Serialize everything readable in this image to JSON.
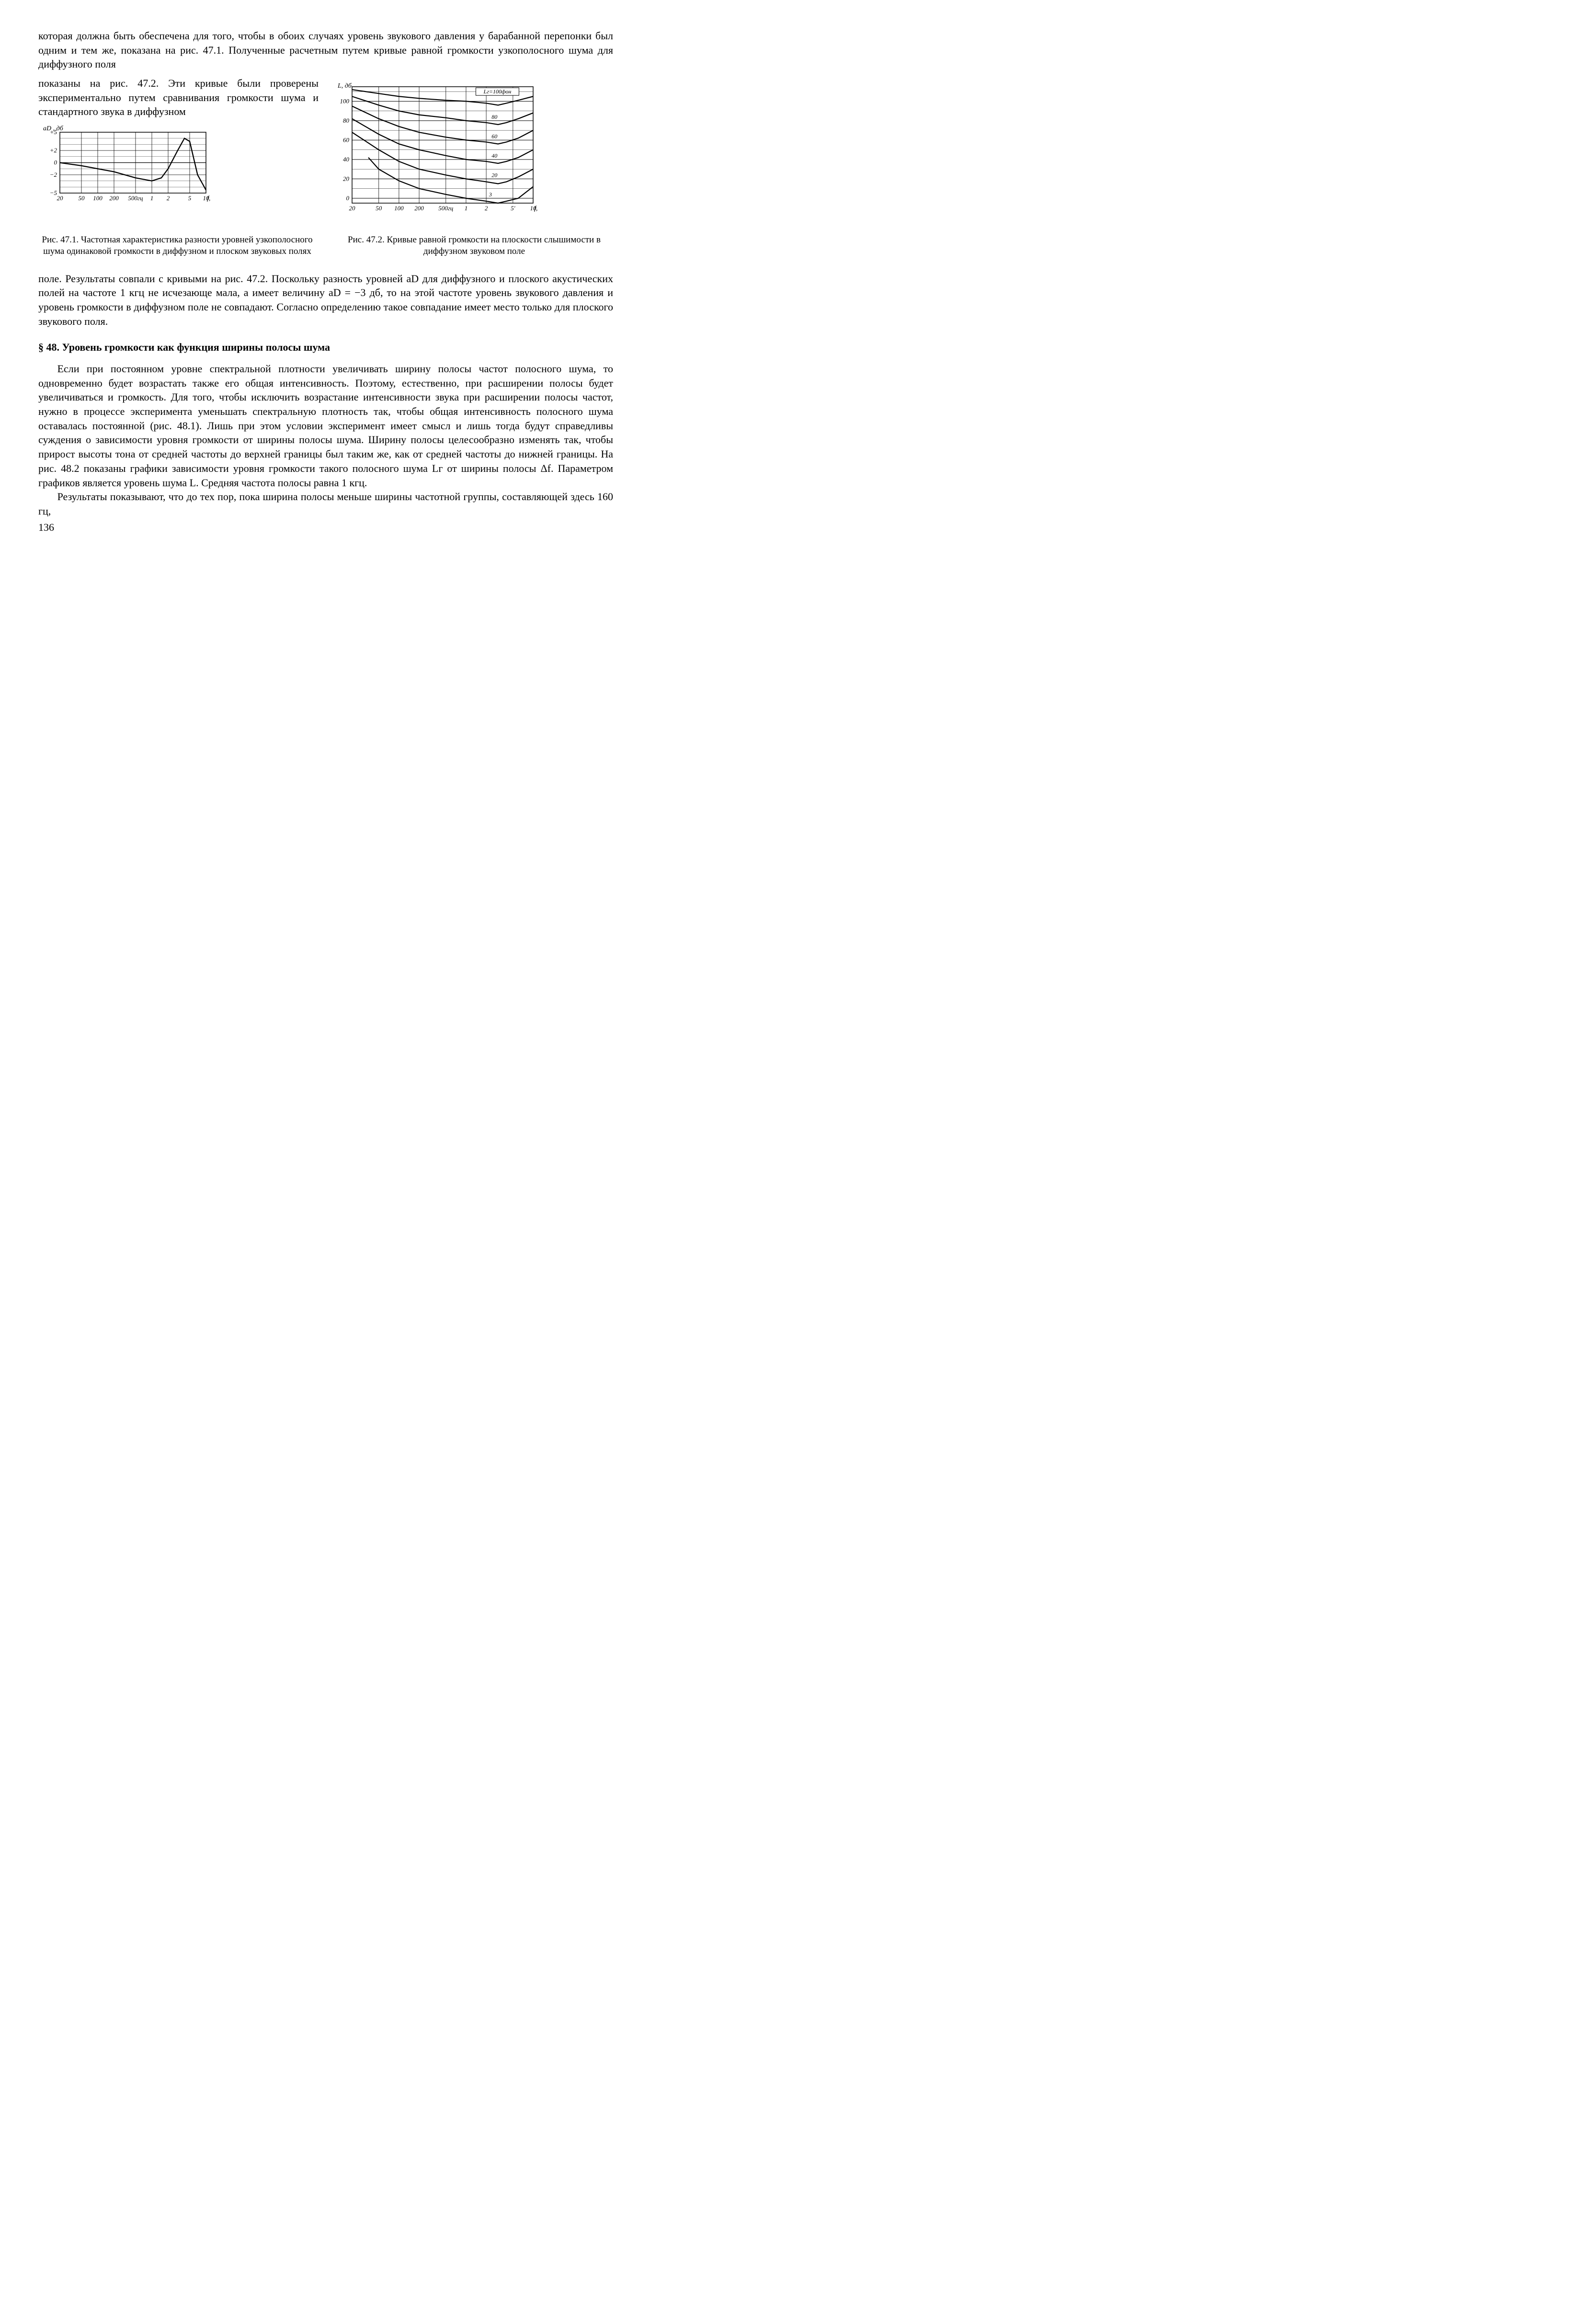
{
  "paragraphs": {
    "p1": "которая должна быть обеспечена для того, чтобы в обоих случаях уровень звукового давления у барабанной перепонки был одним и тем же, показана на рис. 47.1. Полученные расчетным путем кривые равной громкости узкополосного шума для диффузного поля",
    "p2_side": "показаны на рис. 47.2. Эти кривые были проверены экспериментально путем сравнивания громкости шума и стандартного звука в диффузном",
    "p3": "поле. Результаты совпали с кривыми на рис. 47.2. Поскольку разность уровней aD для диффузного и плоского акустических полей на частоте 1 кгц не исчезающе мала, а имеет величину aD = −3 дб, то на этой частоте уровень звукового давления и уровень громкости в диффузном поле не совпадают. Согласно определению такое совпадание имеет место только для плоского звукового поля.",
    "section_heading": "§ 48. Уровень громкости как функция ширины полосы шума",
    "p4": "Если при постоянном уровне спектральной плотности увеличивать ширину полосы частот полосного шума, то одновременно будет возрастать также его общая интенсивность. Поэтому, естественно, при расширении полосы будет увеличиваться и громкость. Для того, чтобы исключить возрастание интенсивности звука при расширении полосы частот, нужно в процессе эксперимента уменьшать спектральную плотность так, чтобы общая интенсивность полосного шума оставалась постоянной (рис. 48.1). Лишь при этом условии эксперимент имеет смысл и лишь тогда будут справедливы суждения о зависимости уровня громкости от ширины полосы шума. Ширину полосы целесообразно изменять так, чтобы прирост высоты тона от средней частоты до верхней границы был таким же, как от средней частоты до нижней границы. На рис. 48.2 показаны графики зависимости уровня громкости такого полосного шума Lг от ширины полосы Δf. Параметром графиков является уровень шума L. Средняя частота полосы равна 1 кгц.",
    "p5": "Результаты показывают, что до тех пор, пока ширина полосы меньше ширины частотной группы, составляющей здесь 160 гц,",
    "page_number": "136"
  },
  "captions": {
    "fig471": "Рис. 47.1. Частотная характеристика разности уровней узкополосного шума одинаковой громкости в диффузном и плоском звуковых полях",
    "fig472": "Рис. 47.2. Кривые равной громкости на плоскости слышимости в диффузном звуковом поле"
  },
  "chart471": {
    "type": "line",
    "x_label": "f, кгц",
    "y_label": "aD , дб",
    "x_ticks": [
      0.02,
      0.05,
      0.1,
      0.2,
      0.5,
      1,
      2,
      5,
      10
    ],
    "x_tick_labels": [
      "20",
      "50",
      "100",
      "200",
      "500гц",
      "1",
      "2",
      "5",
      "10"
    ],
    "y_ticks": [
      -5,
      -2,
      0,
      2,
      5
    ],
    "y_tick_labels": [
      "−5",
      "−2",
      "0",
      "+2",
      "+5"
    ],
    "xlim": [
      0.02,
      10
    ],
    "ylim": [
      -5,
      5
    ],
    "grid_color": "#000000",
    "line_width": 1.5,
    "background_color": "#ffffff",
    "series": {
      "x": [
        0.02,
        0.05,
        0.1,
        0.2,
        0.5,
        1.0,
        1.5,
        2.0,
        3.0,
        4.0,
        5.0,
        7.0,
        10.0
      ],
      "y": [
        0,
        -0.5,
        -1.0,
        -1.5,
        -2.5,
        -3.0,
        -2.5,
        -1.0,
        2.0,
        4.0,
        3.5,
        -2.0,
        -4.5
      ],
      "color": "#000000"
    }
  },
  "chart472": {
    "type": "line",
    "x_label": "f, кгц",
    "y_label": "L, дб",
    "x_ticks": [
      0.02,
      0.05,
      0.1,
      0.2,
      0.5,
      1,
      2,
      5,
      10
    ],
    "x_tick_labels": [
      "20",
      "50",
      "100",
      "200",
      "500гц",
      "1",
      "2",
      "5'",
      "10"
    ],
    "y_ticks": [
      0,
      20,
      40,
      60,
      80,
      100
    ],
    "xlim": [
      0.02,
      10
    ],
    "ylim": [
      -5,
      115
    ],
    "grid_color": "#000000",
    "line_width": 1.5,
    "background_color": "#ffffff",
    "legend_label": "Lг=100фон",
    "curve_labels": [
      "3",
      "20",
      "40",
      "60",
      "80"
    ],
    "curves": [
      {
        "label": "3",
        "x": [
          0.035,
          0.05,
          0.1,
          0.2,
          0.5,
          1,
          2,
          3,
          4,
          6,
          10
        ],
        "y": [
          42,
          30,
          18,
          10,
          4,
          0,
          -3,
          -5,
          -3,
          0,
          12
        ],
        "color": "#000000"
      },
      {
        "label": "20",
        "x": [
          0.02,
          0.05,
          0.1,
          0.2,
          0.5,
          1,
          2,
          3,
          4,
          6,
          10
        ],
        "y": [
          68,
          50,
          38,
          30,
          24,
          20,
          17,
          15,
          17,
          22,
          30
        ],
        "color": "#000000"
      },
      {
        "label": "40",
        "x": [
          0.02,
          0.05,
          0.1,
          0.2,
          0.5,
          1,
          2,
          3,
          4,
          6,
          10
        ],
        "y": [
          82,
          66,
          56,
          50,
          44,
          40,
          38,
          36,
          38,
          42,
          50
        ],
        "color": "#000000"
      },
      {
        "label": "60",
        "x": [
          0.02,
          0.05,
          0.1,
          0.2,
          0.5,
          1,
          2,
          3,
          4,
          6,
          10
        ],
        "y": [
          95,
          82,
          74,
          68,
          63,
          60,
          58,
          56,
          58,
          62,
          70
        ],
        "color": "#000000"
      },
      {
        "label": "80",
        "x": [
          0.02,
          0.05,
          0.1,
          0.2,
          0.5,
          1,
          2,
          3,
          4,
          6,
          10
        ],
        "y": [
          105,
          96,
          90,
          86,
          83,
          80,
          78,
          76,
          78,
          82,
          88
        ],
        "color": "#000000"
      },
      {
        "label": "100",
        "x": [
          0.02,
          0.05,
          0.1,
          0.2,
          0.5,
          1,
          2,
          3,
          4,
          6,
          10
        ],
        "y": [
          112,
          108,
          105,
          103,
          101,
          100,
          98,
          96,
          98,
          101,
          105
        ],
        "color": "#000000"
      }
    ]
  }
}
